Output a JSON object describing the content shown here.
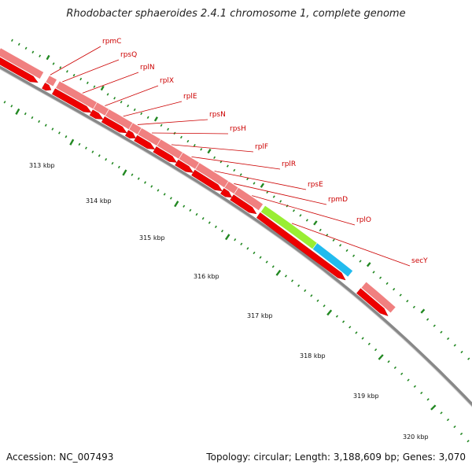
{
  "title": "Rhodobacter sphaeroides 2.4.1 chromosome 1, complete genome",
  "footer": {
    "accession": "Accession: NC_007493",
    "summary": "Topology: circular; Length: 3,188,609 bp; Genes: 3,070"
  },
  "colors": {
    "gene_label": "#cc0000",
    "feature_light": "#f08080",
    "feature_red": "#ee0000",
    "feature_green": "#99ee33",
    "feature_blue": "#22bbee",
    "backbone": "#888888",
    "tick": "#228822"
  },
  "genes": [
    "rpmC",
    "rpsQ",
    "rplN",
    "rplX",
    "rplE",
    "rpsN",
    "rpsH",
    "rplF",
    "rplR",
    "rpsE",
    "rpmD",
    "rplO",
    "secY"
  ],
  "kbp_labels": [
    "313 kbp",
    "314 kbp",
    "315 kbp",
    "316 kbp",
    "317 kbp",
    "318 kbp",
    "319 kbp",
    "320 kbp"
  ]
}
